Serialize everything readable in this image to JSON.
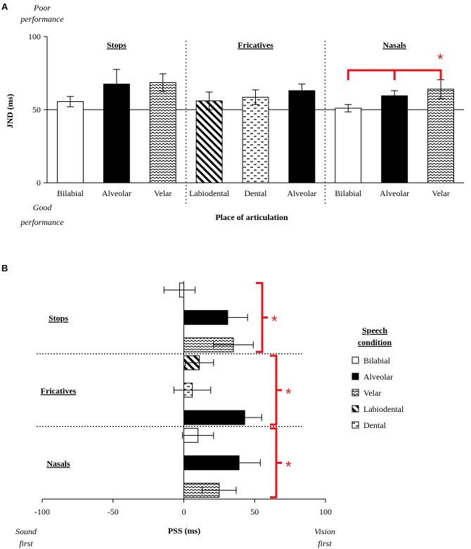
{
  "panel_a": {
    "label": "A",
    "top_note": [
      "Poor",
      "performance"
    ],
    "bottom_note": [
      "Good",
      "performance"
    ],
    "ylabel": "JND (ms)",
    "xlabel": "Place of articulation"
  },
  "panel_b": {
    "label": "B",
    "xlabel": "PSS (ms)",
    "left_note": [
      "Sound",
      "first"
    ],
    "right_note": [
      "Vision",
      "first"
    ],
    "legend_title": [
      "Speech",
      "condition"
    ]
  },
  "colors": {
    "significance": "#e8141b",
    "bar_outline": "#000000",
    "solid": "#000000",
    "open": "#ffffff"
  },
  "chart_data": [
    {
      "type": "bar",
      "title": "",
      "ylabel": "JND (ms)",
      "xlabel": "Place of articulation",
      "ylim": [
        0,
        100
      ],
      "yticks": [
        0,
        50,
        100
      ],
      "reference_line": 50,
      "groups": [
        {
          "name": "Stops",
          "bars": [
            {
              "category": "Bilabial",
              "value": 55.5,
              "error": 3.5,
              "fill": "open"
            },
            {
              "category": "Alveolar",
              "value": 67.5,
              "error": 10,
              "fill": "solid"
            },
            {
              "category": "Velar",
              "value": 68.5,
              "error": 6,
              "fill": "zigzag"
            }
          ]
        },
        {
          "name": "Fricatives",
          "bars": [
            {
              "category": "Labiodental",
              "value": 56,
              "error": 6,
              "fill": "diagonal"
            },
            {
              "category": "Dental",
              "value": 58.5,
              "error": 5,
              "fill": "dashes"
            },
            {
              "category": "Alveolar",
              "value": 63,
              "error": 4.5,
              "fill": "solid"
            }
          ]
        },
        {
          "name": "Nasals",
          "bars": [
            {
              "category": "Bilabial",
              "value": 51,
              "error": 2.5,
              "fill": "open"
            },
            {
              "category": "Alveolar",
              "value": 59.5,
              "error": 3.5,
              "fill": "solid"
            },
            {
              "category": "Velar",
              "value": 64,
              "error": 6.5,
              "fill": "zigzag"
            }
          ]
        }
      ],
      "significance": [
        {
          "group": "Nasals",
          "label": "*"
        }
      ]
    },
    {
      "type": "bar",
      "orientation": "horizontal",
      "xlabel": "PSS (ms)",
      "xlim": [
        -100,
        100
      ],
      "xticks": [
        -100,
        -50,
        0,
        50,
        100
      ],
      "groups": [
        {
          "name": "Stops",
          "bars": [
            {
              "condition": "Bilabial",
              "value": -3,
              "error": 11,
              "fill": "open"
            },
            {
              "condition": "Alveolar",
              "value": 31,
              "error": 14,
              "fill": "solid"
            },
            {
              "condition": "Velar",
              "value": 35,
              "error": 14,
              "fill": "zigzag"
            }
          ]
        },
        {
          "name": "Fricatives",
          "bars": [
            {
              "condition": "Labiodental",
              "value": 11,
              "error": 10,
              "fill": "diagonal"
            },
            {
              "condition": "Dental",
              "value": 6,
              "error": 13,
              "fill": "dashes"
            },
            {
              "condition": "Alveolar",
              "value": 43,
              "error": 12,
              "fill": "solid"
            }
          ]
        },
        {
          "name": "Nasals",
          "bars": [
            {
              "condition": "Bilabial",
              "value": 10,
              "error": 11,
              "fill": "open"
            },
            {
              "condition": "Alveolar",
              "value": 39,
              "error": 15,
              "fill": "solid"
            },
            {
              "condition": "Velar",
              "value": 25,
              "error": 12,
              "fill": "zigzag"
            }
          ]
        }
      ],
      "significance": [
        {
          "group": "Stops",
          "label": "*"
        },
        {
          "group": "Fricatives",
          "label": "*"
        },
        {
          "group": "Nasals",
          "label": "*"
        }
      ],
      "legend": [
        {
          "label": "Bilabial",
          "fill": "open"
        },
        {
          "label": "Alveolar",
          "fill": "solid"
        },
        {
          "label": "Velar",
          "fill": "zigzag"
        },
        {
          "label": "Labiodental",
          "fill": "diagonal"
        },
        {
          "label": "Dental",
          "fill": "dashes"
        }
      ]
    }
  ]
}
